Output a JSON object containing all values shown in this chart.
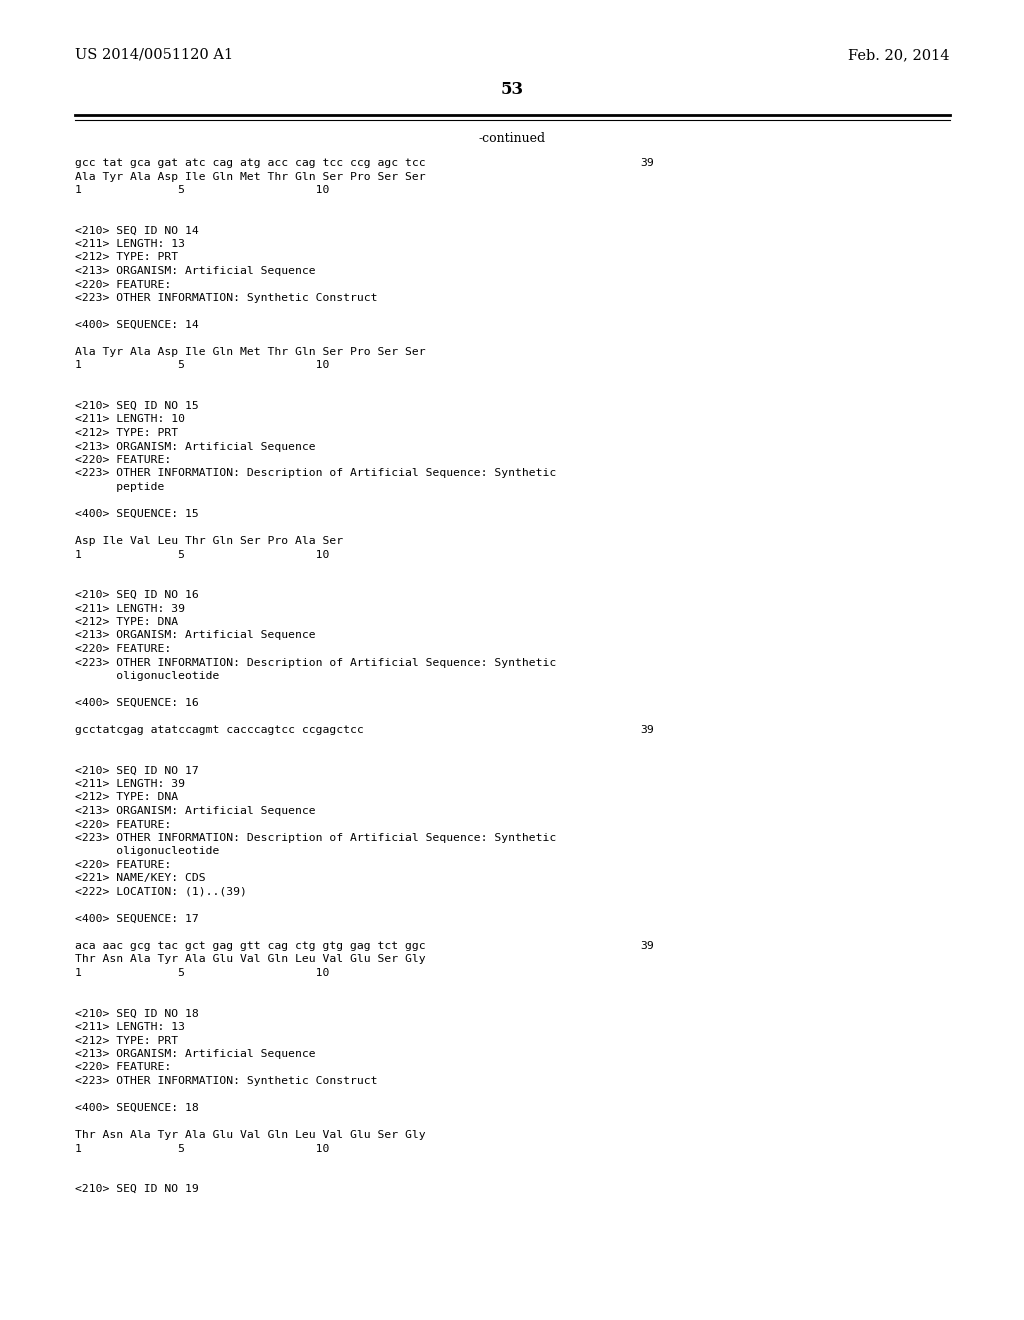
{
  "background_color": "#ffffff",
  "header_left": "US 2014/0051120 A1",
  "header_right": "Feb. 20, 2014",
  "page_number": "53",
  "continued_label": "-continued",
  "content_lines": [
    {
      "text": "gcc tat gca gat atc cag atg acc cag tcc ccg agc tcc",
      "right": "39",
      "indent": 0
    },
    {
      "text": "Ala Tyr Ala Asp Ile Gln Met Thr Gln Ser Pro Ser Ser",
      "right": "",
      "indent": 0
    },
    {
      "text": "1              5                   10",
      "right": "",
      "indent": 0
    },
    {
      "text": "",
      "right": "",
      "indent": 0
    },
    {
      "text": "",
      "right": "",
      "indent": 0
    },
    {
      "text": "<210> SEQ ID NO 14",
      "right": "",
      "indent": 0
    },
    {
      "text": "<211> LENGTH: 13",
      "right": "",
      "indent": 0
    },
    {
      "text": "<212> TYPE: PRT",
      "right": "",
      "indent": 0
    },
    {
      "text": "<213> ORGANISM: Artificial Sequence",
      "right": "",
      "indent": 0
    },
    {
      "text": "<220> FEATURE:",
      "right": "",
      "indent": 0
    },
    {
      "text": "<223> OTHER INFORMATION: Synthetic Construct",
      "right": "",
      "indent": 0
    },
    {
      "text": "",
      "right": "",
      "indent": 0
    },
    {
      "text": "<400> SEQUENCE: 14",
      "right": "",
      "indent": 0
    },
    {
      "text": "",
      "right": "",
      "indent": 0
    },
    {
      "text": "Ala Tyr Ala Asp Ile Gln Met Thr Gln Ser Pro Ser Ser",
      "right": "",
      "indent": 0
    },
    {
      "text": "1              5                   10",
      "right": "",
      "indent": 0
    },
    {
      "text": "",
      "right": "",
      "indent": 0
    },
    {
      "text": "",
      "right": "",
      "indent": 0
    },
    {
      "text": "<210> SEQ ID NO 15",
      "right": "",
      "indent": 0
    },
    {
      "text": "<211> LENGTH: 10",
      "right": "",
      "indent": 0
    },
    {
      "text": "<212> TYPE: PRT",
      "right": "",
      "indent": 0
    },
    {
      "text": "<213> ORGANISM: Artificial Sequence",
      "right": "",
      "indent": 0
    },
    {
      "text": "<220> FEATURE:",
      "right": "",
      "indent": 0
    },
    {
      "text": "<223> OTHER INFORMATION: Description of Artificial Sequence: Synthetic",
      "right": "",
      "indent": 0
    },
    {
      "text": "      peptide",
      "right": "",
      "indent": 0
    },
    {
      "text": "",
      "right": "",
      "indent": 0
    },
    {
      "text": "<400> SEQUENCE: 15",
      "right": "",
      "indent": 0
    },
    {
      "text": "",
      "right": "",
      "indent": 0
    },
    {
      "text": "Asp Ile Val Leu Thr Gln Ser Pro Ala Ser",
      "right": "",
      "indent": 0
    },
    {
      "text": "1              5                   10",
      "right": "",
      "indent": 0
    },
    {
      "text": "",
      "right": "",
      "indent": 0
    },
    {
      "text": "",
      "right": "",
      "indent": 0
    },
    {
      "text": "<210> SEQ ID NO 16",
      "right": "",
      "indent": 0
    },
    {
      "text": "<211> LENGTH: 39",
      "right": "",
      "indent": 0
    },
    {
      "text": "<212> TYPE: DNA",
      "right": "",
      "indent": 0
    },
    {
      "text": "<213> ORGANISM: Artificial Sequence",
      "right": "",
      "indent": 0
    },
    {
      "text": "<220> FEATURE:",
      "right": "",
      "indent": 0
    },
    {
      "text": "<223> OTHER INFORMATION: Description of Artificial Sequence: Synthetic",
      "right": "",
      "indent": 0
    },
    {
      "text": "      oligonucleotide",
      "right": "",
      "indent": 0
    },
    {
      "text": "",
      "right": "",
      "indent": 0
    },
    {
      "text": "<400> SEQUENCE: 16",
      "right": "",
      "indent": 0
    },
    {
      "text": "",
      "right": "",
      "indent": 0
    },
    {
      "text": "gcctatcgag atatccagmt cacccagtcc ccgagctcc",
      "right": "39",
      "indent": 0
    },
    {
      "text": "",
      "right": "",
      "indent": 0
    },
    {
      "text": "",
      "right": "",
      "indent": 0
    },
    {
      "text": "<210> SEQ ID NO 17",
      "right": "",
      "indent": 0
    },
    {
      "text": "<211> LENGTH: 39",
      "right": "",
      "indent": 0
    },
    {
      "text": "<212> TYPE: DNA",
      "right": "",
      "indent": 0
    },
    {
      "text": "<213> ORGANISM: Artificial Sequence",
      "right": "",
      "indent": 0
    },
    {
      "text": "<220> FEATURE:",
      "right": "",
      "indent": 0
    },
    {
      "text": "<223> OTHER INFORMATION: Description of Artificial Sequence: Synthetic",
      "right": "",
      "indent": 0
    },
    {
      "text": "      oligonucleotide",
      "right": "",
      "indent": 0
    },
    {
      "text": "<220> FEATURE:",
      "right": "",
      "indent": 0
    },
    {
      "text": "<221> NAME/KEY: CDS",
      "right": "",
      "indent": 0
    },
    {
      "text": "<222> LOCATION: (1)..(39)",
      "right": "",
      "indent": 0
    },
    {
      "text": "",
      "right": "",
      "indent": 0
    },
    {
      "text": "<400> SEQUENCE: 17",
      "right": "",
      "indent": 0
    },
    {
      "text": "",
      "right": "",
      "indent": 0
    },
    {
      "text": "aca aac gcg tac gct gag gtt cag ctg gtg gag tct ggc",
      "right": "39",
      "indent": 0
    },
    {
      "text": "Thr Asn Ala Tyr Ala Glu Val Gln Leu Val Glu Ser Gly",
      "right": "",
      "indent": 0
    },
    {
      "text": "1              5                   10",
      "right": "",
      "indent": 0
    },
    {
      "text": "",
      "right": "",
      "indent": 0
    },
    {
      "text": "",
      "right": "",
      "indent": 0
    },
    {
      "text": "<210> SEQ ID NO 18",
      "right": "",
      "indent": 0
    },
    {
      "text": "<211> LENGTH: 13",
      "right": "",
      "indent": 0
    },
    {
      "text": "<212> TYPE: PRT",
      "right": "",
      "indent": 0
    },
    {
      "text": "<213> ORGANISM: Artificial Sequence",
      "right": "",
      "indent": 0
    },
    {
      "text": "<220> FEATURE:",
      "right": "",
      "indent": 0
    },
    {
      "text": "<223> OTHER INFORMATION: Synthetic Construct",
      "right": "",
      "indent": 0
    },
    {
      "text": "",
      "right": "",
      "indent": 0
    },
    {
      "text": "<400> SEQUENCE: 18",
      "right": "",
      "indent": 0
    },
    {
      "text": "",
      "right": "",
      "indent": 0
    },
    {
      "text": "Thr Asn Ala Tyr Ala Glu Val Gln Leu Val Glu Ser Gly",
      "right": "",
      "indent": 0
    },
    {
      "text": "1              5                   10",
      "right": "",
      "indent": 0
    },
    {
      "text": "",
      "right": "",
      "indent": 0
    },
    {
      "text": "",
      "right": "",
      "indent": 0
    },
    {
      "text": "<210> SEQ ID NO 19",
      "right": "",
      "indent": 0
    }
  ]
}
